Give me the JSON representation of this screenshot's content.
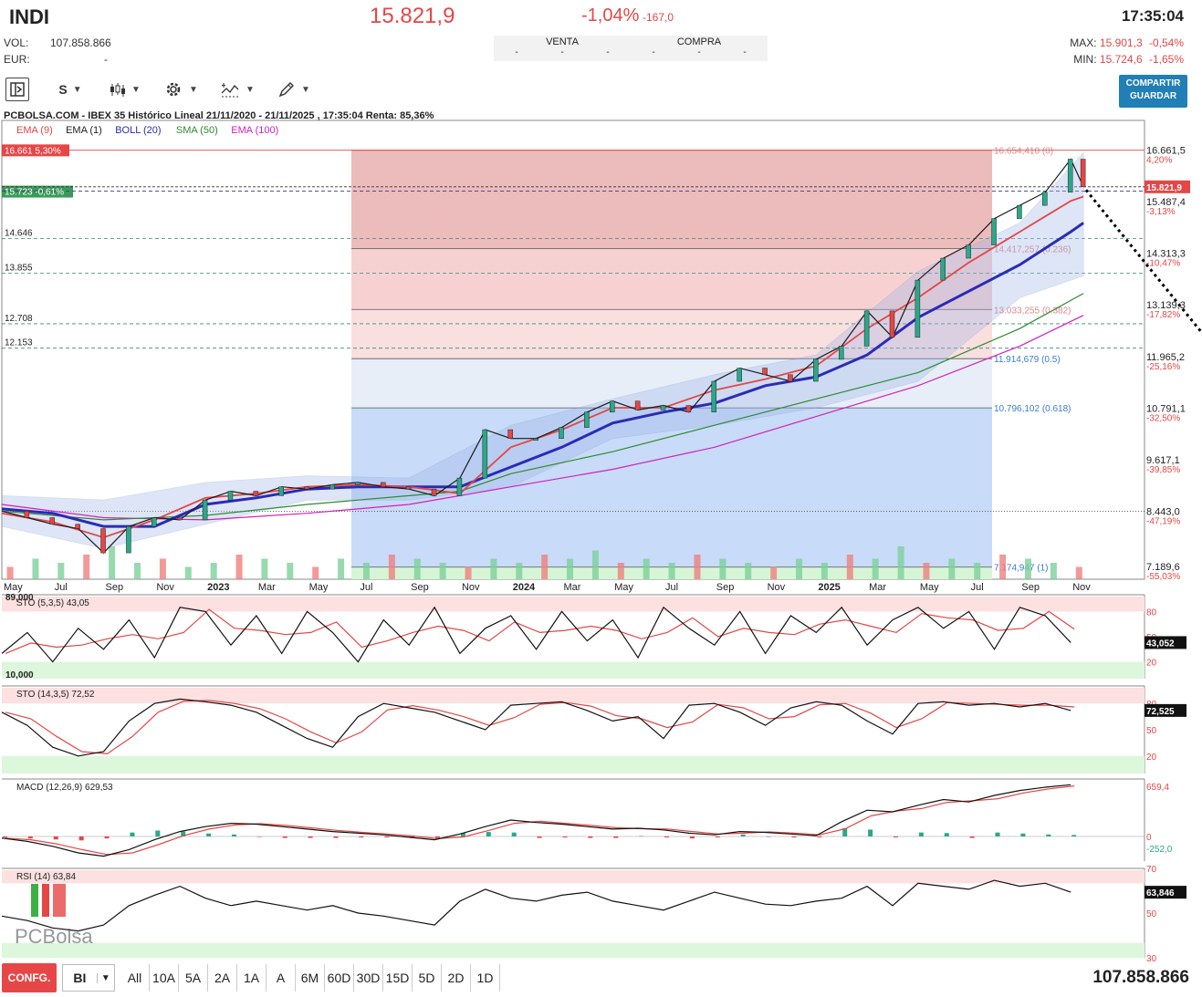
{
  "header": {
    "symbol": "INDI",
    "price": "15.821,9",
    "change_pct": "-1,04%",
    "change_abs": "-167,0",
    "time": "17:35:04",
    "vol_label": "VOL:",
    "vol_value": "107.858.866",
    "eur_label": "EUR:",
    "eur_value": "-",
    "venta_label": "VENTA",
    "compra_label": "COMPRA",
    "dash": "-",
    "max_label": "MAX:",
    "max_value": "15.901,3",
    "max_pct": "-0,54%",
    "min_label": "MIN:",
    "min_value": "15.724,6",
    "min_pct": "-1,65%"
  },
  "toolbar": {
    "s_label": "S",
    "share_line1": "COMPARTIR",
    "share_line2": "GUARDAR"
  },
  "footer": {
    "config_label": "CONFG.",
    "bi_label": "BI",
    "periods": [
      "All",
      "10A",
      "5A",
      "2A",
      "1A",
      "A",
      "6M",
      "60D",
      "30D",
      "15D",
      "5D",
      "2D",
      "1D"
    ],
    "volume": "107.858.866"
  },
  "chart_data": {
    "type": "line",
    "title": "PCBOLSA.COM - IBEX 35 Histórico Lineal 21/11/2020 - 21/11/2025 , 17:35:04 Renta: 85,36%",
    "indicators": [
      "EMA (9)",
      "EMA (1)",
      "BOLL (20)",
      "SMA (50)",
      "EMA (100)"
    ],
    "indicator_colors": [
      "#e64646",
      "#222222",
      "#2b2bb5",
      "#2e8b2e",
      "#d21fbf"
    ],
    "x_ticks": [
      "May",
      "Jul",
      "Sep",
      "Nov",
      "2023",
      "Mar",
      "May",
      "Jul",
      "Sep",
      "Nov",
      "2024",
      "Mar",
      "May",
      "Jul",
      "Sep",
      "Nov",
      "2025",
      "Mar",
      "May",
      "Jul",
      "Sep",
      "Nov"
    ],
    "x_tick_pos": [
      0,
      2,
      4,
      6,
      8,
      10,
      12,
      14,
      16,
      18,
      20,
      22,
      24,
      26,
      28,
      30,
      32,
      34,
      36,
      38,
      40,
      42
    ],
    "ylim": [
      6900,
      17000
    ],
    "y_ticks": [
      {
        "value": 16661.5,
        "label": "16.661,5",
        "pct": "4,20%"
      },
      {
        "value": 15487.4,
        "label": "15.487,4",
        "pct": "-3,13%"
      },
      {
        "value": 14313.3,
        "label": "14.313,3",
        "pct": "-10,47%"
      },
      {
        "value": 13139.3,
        "label": "13.139,3",
        "pct": "-17,82%"
      },
      {
        "value": 11965.2,
        "label": "11.965,2",
        "pct": "-25,16%"
      },
      {
        "value": 10791.1,
        "label": "10.791,1",
        "pct": "-32,50%"
      },
      {
        "value": 9617.1,
        "label": "9.617,1",
        "pct": "-39,85%"
      },
      {
        "value": 8443.0,
        "label": "8.443,0",
        "pct": "-47,19%"
      },
      {
        "value": 7189.6,
        "label": "7.189,6",
        "pct": "-55,03%"
      }
    ],
    "current_price": 15821.9,
    "current_label": "15.821,9",
    "left_labels": [
      {
        "value": 16661,
        "label": "16.661  5,30%"
      },
      {
        "value": 15723,
        "label": "15.723  -0,61%"
      },
      {
        "value": 14646,
        "label": "14.646"
      },
      {
        "value": 13855,
        "label": "13.855"
      },
      {
        "value": 12708,
        "label": "12.708"
      },
      {
        "value": 12153,
        "label": "12.153"
      }
    ],
    "fibonacci": [
      {
        "value": 16654.41,
        "label": "16.654,410 (0)"
      },
      {
        "value": 14417.257,
        "label": "14.417,257 (0.236)"
      },
      {
        "value": 13033.255,
        "label": "13.033,255 (0.382)"
      },
      {
        "value": 11914.679,
        "label": "11.914,679 (0.5)"
      },
      {
        "value": 10796.102,
        "label": "10.796,102 (0.618)"
      },
      {
        "value": 7174.947,
        "label": "7.174,947 (1)"
      }
    ],
    "price_series": {
      "x": [
        0,
        1,
        2,
        3,
        4,
        5,
        6,
        7,
        8,
        9,
        10,
        11,
        12,
        13,
        14,
        15,
        16,
        17,
        18,
        19,
        20,
        21,
        22,
        23,
        24,
        25,
        26,
        27,
        28,
        29,
        30,
        31,
        32,
        33,
        34,
        35,
        36,
        37,
        38,
        39,
        40,
        41,
        42,
        42.5
      ],
      "y": [
        8450,
        8300,
        8150,
        8050,
        7500,
        8100,
        8300,
        8250,
        8700,
        8900,
        8800,
        9000,
        8950,
        9050,
        9100,
        9000,
        8950,
        8800,
        9200,
        10300,
        10100,
        10100,
        10350,
        10700,
        10950,
        10750,
        10850,
        10700,
        11400,
        11700,
        11550,
        11400,
        11900,
        12200,
        13000,
        12400,
        13700,
        14200,
        14500,
        15100,
        15400,
        15700,
        16450,
        15822
      ]
    },
    "ema9": {
      "x": [
        0,
        2,
        4,
        6,
        8,
        10,
        12,
        14,
        16,
        18,
        20,
        22,
        24,
        26,
        28,
        30,
        32,
        34,
        36,
        38,
        40,
        42,
        42.5
      ],
      "y": [
        8400,
        8200,
        7850,
        8250,
        8750,
        8850,
        9000,
        9050,
        9000,
        8850,
        9900,
        10300,
        10800,
        10800,
        11200,
        11450,
        11750,
        12600,
        13300,
        14100,
        14800,
        15500,
        15600
      ]
    },
    "boll_mid": {
      "x": [
        0,
        2,
        4,
        6,
        8,
        10,
        12,
        14,
        16,
        18,
        20,
        22,
        24,
        26,
        28,
        30,
        32,
        34,
        36,
        38,
        40,
        42,
        42.5
      ],
      "y": [
        8500,
        8400,
        8100,
        8100,
        8600,
        8750,
        8950,
        9000,
        9000,
        9000,
        9450,
        9900,
        10450,
        10700,
        10900,
        11300,
        11500,
        12000,
        12850,
        13450,
        14050,
        14800,
        15000
      ]
    },
    "sma50": {
      "x": [
        0,
        4,
        8,
        12,
        16,
        18,
        20,
        24,
        28,
        32,
        36,
        40,
        42.5
      ],
      "y": [
        8450,
        8250,
        8350,
        8600,
        8800,
        8900,
        9300,
        9800,
        10400,
        11000,
        11600,
        12600,
        13400
      ]
    },
    "ema100": {
      "x": [
        0,
        4,
        8,
        12,
        16,
        20,
        24,
        28,
        32,
        36,
        40,
        42.5
      ],
      "y": [
        8600,
        8300,
        8250,
        8400,
        8600,
        9000,
        9400,
        9900,
        10600,
        11300,
        12200,
        12900
      ]
    },
    "boll_upper": {
      "x": [
        0,
        4,
        8,
        12,
        16,
        20,
        24,
        28,
        32,
        36,
        40,
        42.5
      ],
      "y": [
        8800,
        8700,
        9100,
        9250,
        9200,
        10400,
        11000,
        11550,
        12000,
        13900,
        15000,
        16600
      ]
    },
    "boll_lower": {
      "x": [
        0,
        4,
        8,
        12,
        16,
        20,
        24,
        28,
        32,
        36,
        40,
        42.5
      ],
      "y": [
        8100,
        7600,
        8150,
        8700,
        8700,
        9000,
        10100,
        10400,
        10800,
        11400,
        13300,
        13800
      ]
    },
    "projection": {
      "from": [
        42.6,
        15750
      ],
      "to": [
        48,
        11900
      ]
    },
    "volume_values": [
      3,
      5,
      4,
      6,
      8,
      4,
      5,
      3,
      4,
      6,
      5,
      4,
      3,
      5,
      4,
      6,
      5,
      4,
      3,
      5,
      4,
      6,
      5,
      7,
      4,
      5,
      4,
      6,
      5,
      4,
      3,
      5,
      4,
      6,
      5,
      8,
      4,
      5,
      4,
      6,
      5,
      4,
      3
    ],
    "sto1": {
      "label": "STO (5,3,5)",
      "value": "43,05",
      "last_label": "43,052",
      "y_ticks": [
        "80",
        "50",
        "20"
      ],
      "top_label": "89,000",
      "bottom_label": "10,000",
      "values": [
        30,
        55,
        20,
        60,
        35,
        70,
        25,
        85,
        80,
        40,
        75,
        30,
        80,
        55,
        20,
        70,
        40,
        85,
        30,
        60,
        75,
        35,
        80,
        45,
        70,
        25,
        85,
        60,
        40,
        80,
        30,
        75,
        55,
        85,
        40,
        70,
        85,
        60,
        80,
        35,
        85,
        75,
        43
      ]
    },
    "sto2": {
      "label": "STO (14,3,5)",
      "value": "72,52",
      "last_label": "72,525",
      "y_ticks": [
        "80",
        "50",
        "20"
      ],
      "values": [
        70,
        55,
        30,
        20,
        25,
        60,
        80,
        85,
        82,
        78,
        70,
        55,
        40,
        30,
        65,
        80,
        75,
        70,
        60,
        50,
        78,
        80,
        82,
        72,
        60,
        65,
        40,
        78,
        80,
        70,
        55,
        75,
        82,
        78,
        60,
        45,
        80,
        82,
        78,
        80,
        76,
        80,
        72
      ]
    },
    "macd": {
      "label": "MACD (12,26,9)",
      "value": "629,53",
      "y_ticks": [
        "659,4",
        "0",
        "-252,0"
      ],
      "values": [
        -20,
        -60,
        -120,
        -200,
        -240,
        -160,
        -40,
        60,
        120,
        160,
        150,
        120,
        90,
        60,
        40,
        20,
        -10,
        -40,
        30,
        120,
        200,
        170,
        150,
        120,
        90,
        100,
        80,
        40,
        20,
        60,
        50,
        30,
        10,
        180,
        320,
        300,
        380,
        450,
        420,
        500,
        560,
        600,
        630
      ]
    },
    "rsi": {
      "label": "RSI (14)",
      "value": "63,84",
      "last_label": "63,846",
      "y_ticks": [
        "70",
        "50",
        "30"
      ],
      "values": [
        48,
        45,
        40,
        38,
        42,
        55,
        62,
        68,
        60,
        55,
        58,
        55,
        52,
        55,
        50,
        48,
        45,
        42,
        58,
        66,
        60,
        58,
        62,
        64,
        58,
        55,
        52,
        58,
        64,
        60,
        56,
        55,
        58,
        60,
        68,
        55,
        70,
        68,
        66,
        72,
        68,
        70,
        64
      ]
    }
  }
}
